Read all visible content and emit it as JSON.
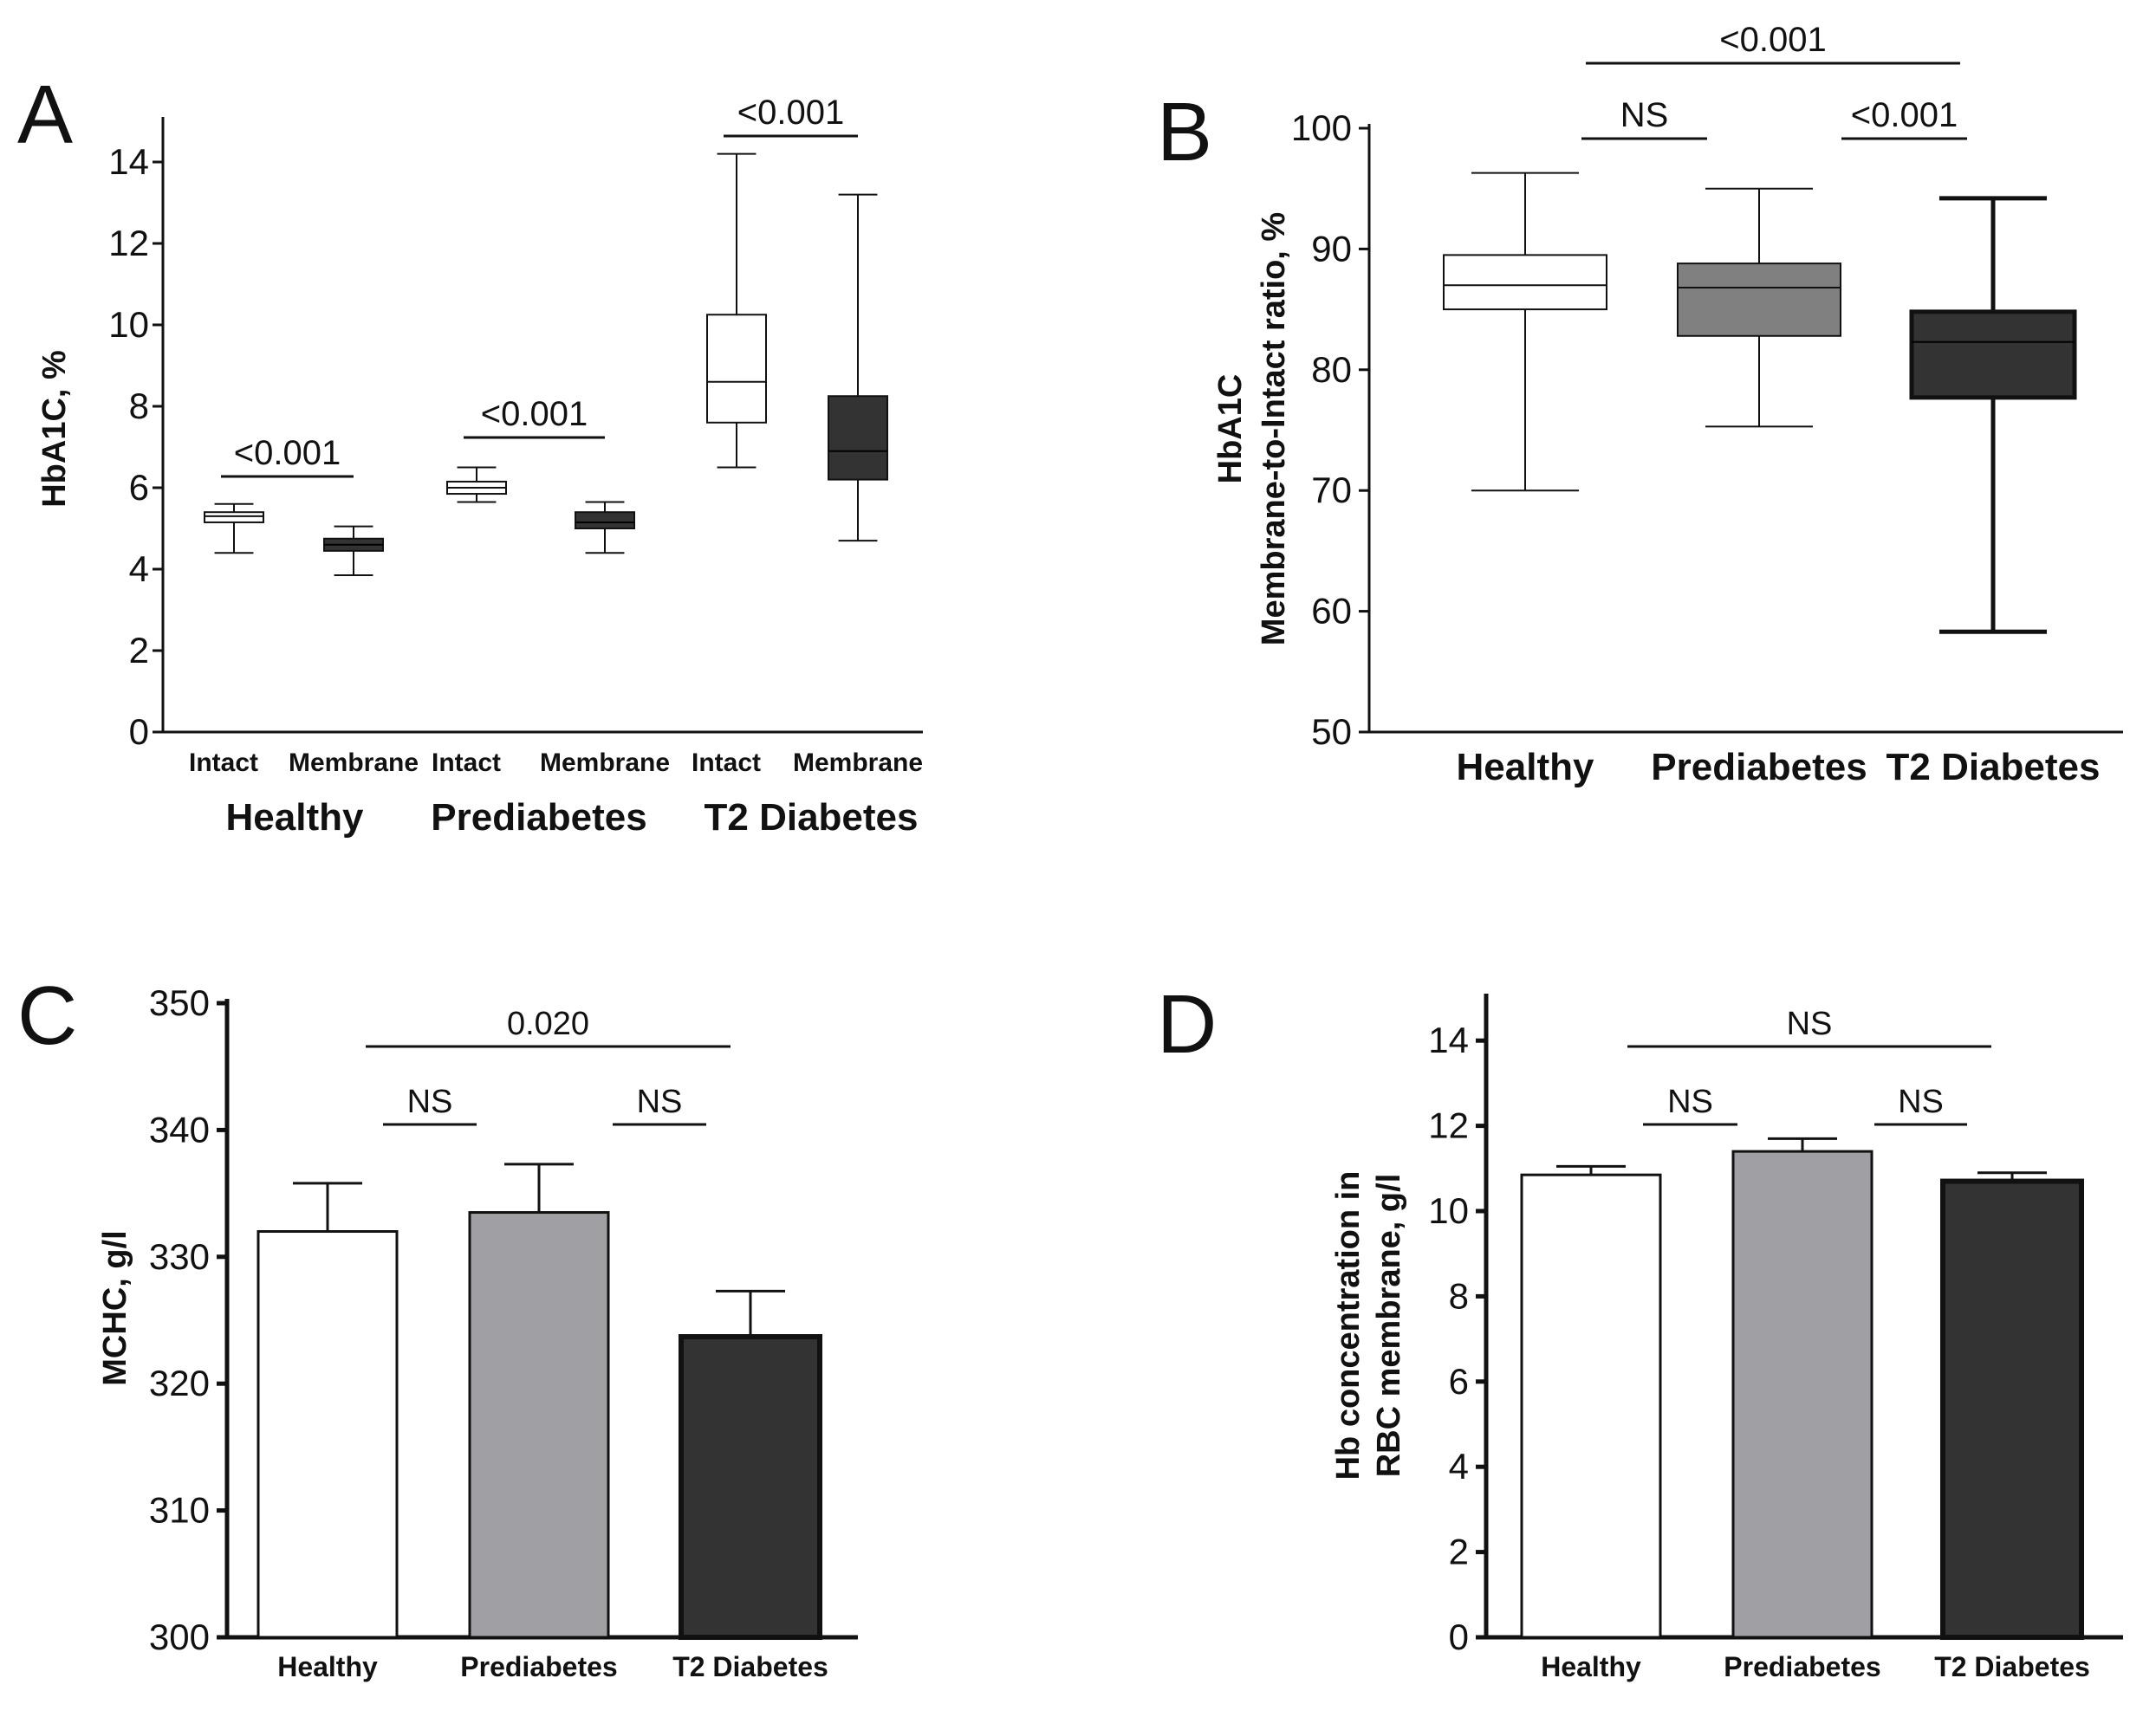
{
  "panels": {
    "a": {
      "label": "A"
    },
    "b": {
      "label": "B"
    },
    "c": {
      "label": "C"
    },
    "d": {
      "label": "D"
    }
  },
  "chart_data": [
    {
      "panel": "A",
      "type": "box",
      "ylabel": "HbA1C, %",
      "ylim": [
        0,
        15
      ],
      "yticks": [
        0,
        2,
        4,
        6,
        8,
        10,
        12,
        14
      ],
      "groups": [
        "Healthy",
        "Prediabetes",
        "T2 Diabetes"
      ],
      "subcategories": [
        "Intact",
        "Membrane"
      ],
      "boxes": [
        {
          "group": "Healthy",
          "sub": "Intact",
          "min": 4.4,
          "q1": 5.15,
          "median": 5.3,
          "q3": 5.4,
          "max": 5.6,
          "fill": "#ffffff"
        },
        {
          "group": "Healthy",
          "sub": "Membrane",
          "min": 3.85,
          "q1": 4.45,
          "median": 4.6,
          "q3": 4.75,
          "max": 5.05,
          "fill": "#333333"
        },
        {
          "group": "Prediabetes",
          "sub": "Intact",
          "min": 5.65,
          "q1": 5.85,
          "median": 6.0,
          "q3": 6.15,
          "max": 6.5,
          "fill": "#ffffff"
        },
        {
          "group": "Prediabetes",
          "sub": "Membrane",
          "min": 4.4,
          "q1": 5.0,
          "median": 5.15,
          "q3": 5.4,
          "max": 5.65,
          "fill": "#333333"
        },
        {
          "group": "T2 Diabetes",
          "sub": "Intact",
          "min": 6.5,
          "q1": 7.6,
          "median": 8.6,
          "q3": 10.25,
          "max": 14.2,
          "fill": "#ffffff"
        },
        {
          "group": "T2 Diabetes",
          "sub": "Membrane",
          "min": 4.7,
          "q1": 6.2,
          "median": 6.9,
          "q3": 8.25,
          "max": 13.2,
          "fill": "#333333"
        }
      ],
      "comparisons": [
        {
          "from": 0,
          "to": 1,
          "label": "<0.001"
        },
        {
          "from": 2,
          "to": 3,
          "label": "<0.001"
        },
        {
          "from": 4,
          "to": 5,
          "label": "<0.001"
        }
      ]
    },
    {
      "panel": "B",
      "type": "box",
      "ylabel_line1": "HbA1C",
      "ylabel_line2": "Membrane-to-Intact ratio, %",
      "ylim": [
        50,
        100
      ],
      "yticks": [
        50,
        60,
        70,
        80,
        90,
        100
      ],
      "categories": [
        "Healthy",
        "Prediabetes",
        "T2 Diabetes"
      ],
      "boxes": [
        {
          "category": "Healthy",
          "min": 70.0,
          "q1": 85.0,
          "median": 87.0,
          "q3": 89.5,
          "max": 96.3,
          "fill": "#ffffff"
        },
        {
          "category": "Prediabetes",
          "min": 75.3,
          "q1": 82.8,
          "median": 86.8,
          "q3": 88.8,
          "max": 95.0,
          "fill": "#808080"
        },
        {
          "category": "T2 Diabetes",
          "min": 58.3,
          "q1": 77.7,
          "median": 82.3,
          "q3": 84.8,
          "max": 94.2,
          "fill": "#333333"
        }
      ],
      "comparisons": [
        {
          "from": 0,
          "to": 1,
          "label": "NS"
        },
        {
          "from": 1,
          "to": 2,
          "label": "<0.001"
        },
        {
          "from": 0,
          "to": 2,
          "label": "<0.001"
        }
      ]
    },
    {
      "panel": "C",
      "type": "bar",
      "ylabel": "MCHC, g/l",
      "ylim": [
        300,
        350
      ],
      "yticks": [
        300,
        310,
        320,
        330,
        340,
        350
      ],
      "categories": [
        "Healthy",
        "Prediabetes",
        "T2 Diabetes"
      ],
      "values": [
        332.0,
        333.5,
        323.7
      ],
      "errors": [
        3.8,
        3.8,
        3.6
      ],
      "fills": [
        "#ffffff",
        "#a0a0a4",
        "#333333"
      ],
      "comparisons": [
        {
          "from": 0,
          "to": 1,
          "label": "NS"
        },
        {
          "from": 1,
          "to": 2,
          "label": "NS"
        },
        {
          "from": 0,
          "to": 2,
          "label": "0.020"
        }
      ]
    },
    {
      "panel": "D",
      "type": "bar",
      "ylabel_line1": "Hb concentration in",
      "ylabel_line2": "RBC membrane, g/l",
      "ylim": [
        0,
        15
      ],
      "yticks": [
        0,
        2,
        4,
        6,
        8,
        10,
        12,
        14
      ],
      "categories": [
        "Healthy",
        "Prediabetes",
        "T2 Diabetes"
      ],
      "values": [
        10.85,
        11.4,
        10.7
      ],
      "errors": [
        0.2,
        0.3,
        0.2
      ],
      "fills": [
        "#ffffff",
        "#a0a0a4",
        "#333333"
      ],
      "comparisons": [
        {
          "from": 0,
          "to": 1,
          "label": "NS"
        },
        {
          "from": 1,
          "to": 2,
          "label": "NS"
        },
        {
          "from": 0,
          "to": 2,
          "label": "NS"
        }
      ]
    }
  ]
}
